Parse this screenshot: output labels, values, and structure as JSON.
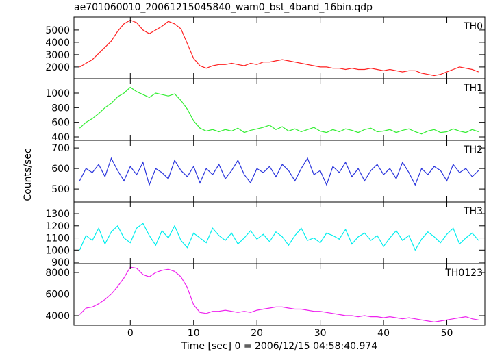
{
  "figure": {
    "title": "ae701060010_20061215045840_wam0_bst_4band_16bin.qdp",
    "x_label": "Time [sec] 0 = 2006/12/15 04:58:40.974",
    "y_label": "Counts/sec",
    "xlim": [
      -8.9,
      56
    ],
    "xticks": [
      0,
      10,
      20,
      30,
      40,
      50
    ],
    "x": [
      -8,
      -7,
      -6,
      -5,
      -4,
      -3,
      -2,
      -1,
      0,
      1,
      2,
      3,
      4,
      5,
      6,
      7,
      8,
      9,
      10,
      11,
      12,
      13,
      14,
      15,
      16,
      17,
      18,
      19,
      20,
      21,
      22,
      23,
      24,
      25,
      26,
      27,
      28,
      29,
      30,
      31,
      32,
      33,
      34,
      35,
      36,
      37,
      38,
      39,
      40,
      41,
      42,
      43,
      44,
      45,
      46,
      47,
      48,
      49,
      50,
      51,
      52,
      53,
      54,
      55
    ]
  },
  "chart_data": [
    {
      "type": "line",
      "name": "TH0",
      "color": "#ff2020",
      "ylim": [
        1050,
        6050
      ],
      "yticks": [
        2000,
        3000,
        4000,
        5000
      ],
      "values": [
        2000,
        2300,
        2600,
        3100,
        3600,
        4100,
        4900,
        5500,
        5800,
        5600,
        5000,
        4700,
        5000,
        5300,
        5700,
        5500,
        5100,
        3900,
        2700,
        2100,
        1900,
        2100,
        2200,
        2200,
        2300,
        2200,
        2100,
        2300,
        2200,
        2400,
        2400,
        2500,
        2600,
        2500,
        2400,
        2300,
        2200,
        2100,
        2000,
        2000,
        1900,
        1900,
        1800,
        1900,
        1800,
        1800,
        1900,
        1800,
        1700,
        1800,
        1700,
        1600,
        1700,
        1700,
        1500,
        1400,
        1300,
        1400,
        1600,
        1800,
        2000,
        1900,
        1800,
        1600
      ]
    },
    {
      "type": "line",
      "name": "TH1",
      "color": "#33ee33",
      "ylim": [
        353,
        1197
      ],
      "yticks": [
        400,
        600,
        800,
        1000
      ],
      "values": [
        520,
        600,
        650,
        720,
        800,
        860,
        950,
        1000,
        1080,
        1020,
        980,
        940,
        1000,
        980,
        960,
        990,
        900,
        780,
        620,
        520,
        480,
        500,
        470,
        500,
        480,
        520,
        460,
        490,
        510,
        530,
        560,
        500,
        540,
        480,
        510,
        470,
        500,
        530,
        480,
        460,
        500,
        470,
        510,
        490,
        460,
        500,
        520,
        470,
        480,
        500,
        460,
        490,
        510,
        470,
        440,
        480,
        500,
        460,
        470,
        510,
        480,
        460,
        500,
        470
      ]
    },
    {
      "type": "line",
      "name": "TH2",
      "color": "#2a35dd",
      "ylim": [
        437,
        737
      ],
      "yticks": [
        500,
        600,
        700
      ],
      "values": [
        540,
        600,
        580,
        620,
        560,
        650,
        590,
        540,
        610,
        570,
        630,
        520,
        600,
        580,
        550,
        640,
        590,
        560,
        610,
        530,
        600,
        570,
        620,
        550,
        590,
        640,
        570,
        530,
        600,
        580,
        610,
        560,
        620,
        590,
        540,
        600,
        650,
        570,
        590,
        520,
        610,
        580,
        630,
        560,
        600,
        540,
        590,
        620,
        570,
        600,
        550,
        630,
        580,
        520,
        600,
        570,
        610,
        590,
        540,
        620,
        580,
        600,
        560,
        590
      ]
    },
    {
      "type": "line",
      "name": "TH3",
      "color": "#00eeee",
      "ylim": [
        889,
        1396
      ],
      "yticks": [
        900,
        1000,
        1100,
        1200,
        1300
      ],
      "values": [
        1000,
        1120,
        1080,
        1180,
        1050,
        1150,
        1200,
        1100,
        1060,
        1180,
        1220,
        1120,
        1040,
        1160,
        1100,
        1200,
        1080,
        1020,
        1140,
        1100,
        1060,
        1180,
        1120,
        1080,
        1140,
        1050,
        1100,
        1160,
        1090,
        1130,
        1070,
        1150,
        1110,
        1040,
        1120,
        1180,
        1080,
        1100,
        1060,
        1140,
        1120,
        1090,
        1170,
        1050,
        1110,
        1140,
        1080,
        1120,
        1030,
        1100,
        1160,
        1080,
        1120,
        1000,
        1090,
        1150,
        1110,
        1060,
        1130,
        1180,
        1050,
        1100,
        1140,
        1080
      ]
    },
    {
      "type": "line",
      "name": "TH0123",
      "color": "#ee22ee",
      "ylim": [
        3111,
        8825
      ],
      "yticks": [
        4000,
        6000,
        8000
      ],
      "values": [
        4100,
        4700,
        4800,
        5100,
        5500,
        6000,
        6700,
        7500,
        8500,
        8400,
        7800,
        7600,
        8000,
        8200,
        8300,
        8100,
        7600,
        6600,
        5000,
        4300,
        4200,
        4400,
        4400,
        4500,
        4400,
        4300,
        4400,
        4300,
        4500,
        4600,
        4700,
        4800,
        4800,
        4700,
        4600,
        4600,
        4500,
        4400,
        4400,
        4300,
        4200,
        4100,
        4000,
        4000,
        3900,
        4000,
        3900,
        3900,
        3800,
        3900,
        3800,
        3700,
        3800,
        3700,
        3600,
        3500,
        3400,
        3500,
        3600,
        3700,
        3800,
        3900,
        3700,
        3600
      ]
    }
  ]
}
